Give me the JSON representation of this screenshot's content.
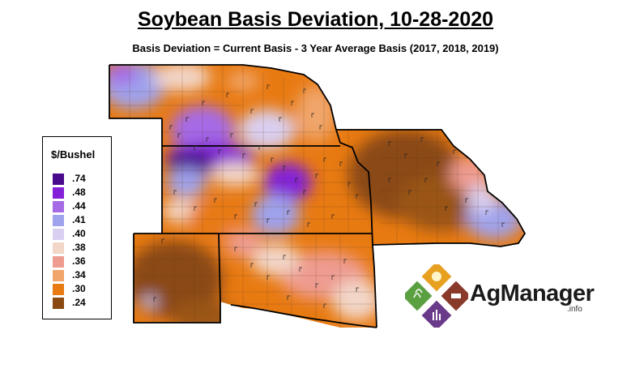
{
  "title": "Soybean Basis Deviation, 10-28-2020",
  "subtitle": "Basis Deviation = Current Basis - 3 Year Average Basis (2017, 2018, 2019)",
  "legend": {
    "title": "$/Bushel",
    "items": [
      {
        "label": ".74",
        "color": "#4a0a8c"
      },
      {
        "label": ".48",
        "color": "#8420d8"
      },
      {
        "label": ".44",
        "color": "#a66ae6"
      },
      {
        "label": ".41",
        "color": "#9fa2ec"
      },
      {
        "label": ".40",
        "color": "#d9cff0"
      },
      {
        "label": ".38",
        "color": "#f2d6c8"
      },
      {
        "label": ".36",
        "color": "#ee9b90"
      },
      {
        "label": ".34",
        "color": "#f0a56a"
      },
      {
        "label": ".30",
        "color": "#e87a12"
      },
      {
        "label": ".24",
        "color": "#8a4a12"
      }
    ]
  },
  "logo": {
    "name": "AgManager",
    "suffix": ".info"
  }
}
